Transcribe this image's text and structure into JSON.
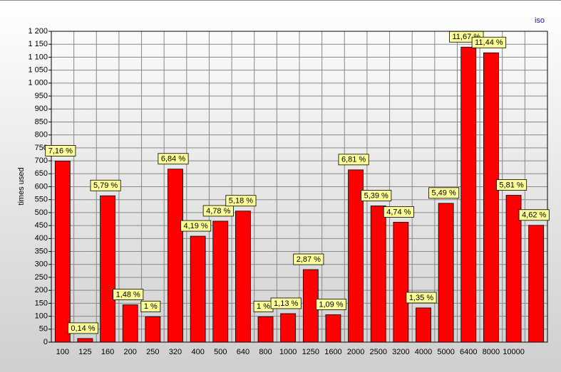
{
  "chart_data": {
    "type": "bar",
    "title": "iso",
    "y_label": "times used",
    "categories": [
      "100",
      "125",
      "160",
      "200",
      "250",
      "320",
      "400",
      "500",
      "640",
      "800",
      "1000",
      "1250",
      "1600",
      "2000",
      "2500",
      "3200",
      "4000",
      "5000",
      "6400",
      "8000",
      "10000",
      null
    ],
    "values": [
      699,
      14,
      565,
      144,
      98,
      668,
      409,
      467,
      506,
      98,
      110,
      280,
      106,
      665,
      526,
      463,
      132,
      536,
      1139,
      1117,
      567,
      451
    ],
    "data_labels": [
      "7,16 %",
      "0,14 %",
      "5,79 %",
      "1,48 %",
      "1 %",
      "6,84 %",
      "4,19 %",
      "4,78 %",
      "5,18 %",
      "1 %",
      "1,13 %",
      "2,87 %",
      "1,09 %",
      "6,81 %",
      "5,39 %",
      "4,74 %",
      "1,35 %",
      "5,49 %",
      "11,67 %",
      "11,44 %",
      "5,81 %",
      "4,62 %"
    ],
    "color": "#ff0000",
    "label_color": "#ffff99",
    "ylim": [
      0,
      1200
    ],
    "yticks": [
      0,
      50,
      100,
      150,
      200,
      250,
      300,
      350,
      400,
      450,
      500,
      550,
      600,
      650,
      700,
      750,
      800,
      850,
      900,
      950,
      {
        "value": 1000,
        "label": "1 000"
      },
      {
        "value": 1050,
        "label": "1 050"
      },
      {
        "value": 1100,
        "label": "1 100"
      },
      {
        "value": 1150,
        "label": "1 150"
      },
      {
        "value": 1200,
        "label": "1 200"
      }
    ],
    "grid": true
  }
}
